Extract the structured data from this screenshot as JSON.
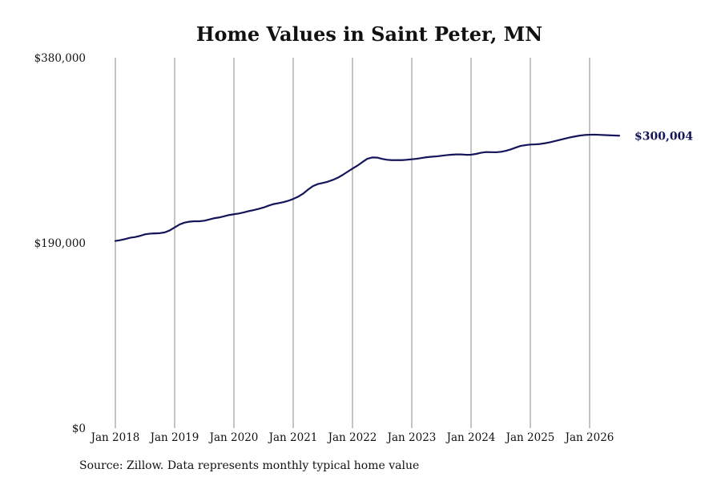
{
  "chart_data": {
    "type": "line",
    "title": "Home Values in Saint Peter, MN",
    "xlabel": "",
    "ylabel": "",
    "ylim": [
      0,
      380000
    ],
    "xlim": [
      "2018-01",
      "2026-08"
    ],
    "yticks": [
      {
        "value": 0,
        "label": "$0"
      },
      {
        "value": 190000,
        "label": "$190,000"
      },
      {
        "value": 380000,
        "label": "$380,000"
      }
    ],
    "xticks": [
      {
        "value": "2018-01",
        "label": "Jan 2018"
      },
      {
        "value": "2019-01",
        "label": "Jan 2019"
      },
      {
        "value": "2020-01",
        "label": "Jan 2020"
      },
      {
        "value": "2021-01",
        "label": "Jan 2021"
      },
      {
        "value": "2022-01",
        "label": "Jan 2022"
      },
      {
        "value": "2023-01",
        "label": "Jan 2023"
      },
      {
        "value": "2024-01",
        "label": "Jan 2024"
      },
      {
        "value": "2025-01",
        "label": "Jan 2025"
      },
      {
        "value": "2026-01",
        "label": "Jan 2026"
      }
    ],
    "grid": {
      "vertical": true,
      "horizontal": false
    },
    "line_color": "#14145a",
    "end_label": "$300,004",
    "series": [
      {
        "points": [
          {
            "x": "2018-01",
            "y": 192000
          },
          {
            "x": "2018-02",
            "y": 192800
          },
          {
            "x": "2018-03",
            "y": 194000
          },
          {
            "x": "2018-04",
            "y": 195300
          },
          {
            "x": "2018-05",
            "y": 196000
          },
          {
            "x": "2018-06",
            "y": 197200
          },
          {
            "x": "2018-07",
            "y": 198800
          },
          {
            "x": "2018-08",
            "y": 199500
          },
          {
            "x": "2018-09",
            "y": 199800
          },
          {
            "x": "2018-10",
            "y": 200000
          },
          {
            "x": "2018-11",
            "y": 200800
          },
          {
            "x": "2018-12",
            "y": 202800
          },
          {
            "x": "2019-01",
            "y": 205900
          },
          {
            "x": "2019-02",
            "y": 208900
          },
          {
            "x": "2019-03",
            "y": 210800
          },
          {
            "x": "2019-04",
            "y": 211800
          },
          {
            "x": "2019-05",
            "y": 212200
          },
          {
            "x": "2019-06",
            "y": 212200
          },
          {
            "x": "2019-07",
            "y": 212800
          },
          {
            "x": "2019-08",
            "y": 214000
          },
          {
            "x": "2019-09",
            "y": 215300
          },
          {
            "x": "2019-10",
            "y": 216100
          },
          {
            "x": "2019-11",
            "y": 217300
          },
          {
            "x": "2019-12",
            "y": 218600
          },
          {
            "x": "2020-01",
            "y": 219400
          },
          {
            "x": "2020-02",
            "y": 220200
          },
          {
            "x": "2020-03",
            "y": 221300
          },
          {
            "x": "2020-04",
            "y": 222600
          },
          {
            "x": "2020-05",
            "y": 223700
          },
          {
            "x": "2020-06",
            "y": 224900
          },
          {
            "x": "2020-07",
            "y": 226300
          },
          {
            "x": "2020-08",
            "y": 228200
          },
          {
            "x": "2020-09",
            "y": 229800
          },
          {
            "x": "2020-10",
            "y": 230800
          },
          {
            "x": "2020-11",
            "y": 231800
          },
          {
            "x": "2020-12",
            "y": 233200
          },
          {
            "x": "2021-01",
            "y": 235100
          },
          {
            "x": "2021-02",
            "y": 237400
          },
          {
            "x": "2021-03",
            "y": 240500
          },
          {
            "x": "2021-04",
            "y": 244700
          },
          {
            "x": "2021-05",
            "y": 248300
          },
          {
            "x": "2021-06",
            "y": 250400
          },
          {
            "x": "2021-07",
            "y": 251500
          },
          {
            "x": "2021-08",
            "y": 252800
          },
          {
            "x": "2021-09",
            "y": 254600
          },
          {
            "x": "2021-10",
            "y": 256800
          },
          {
            "x": "2021-11",
            "y": 259700
          },
          {
            "x": "2021-12",
            "y": 263000
          },
          {
            "x": "2022-01",
            "y": 266200
          },
          {
            "x": "2022-02",
            "y": 269300
          },
          {
            "x": "2022-03",
            "y": 272900
          },
          {
            "x": "2022-04",
            "y": 276300
          },
          {
            "x": "2022-05",
            "y": 277700
          },
          {
            "x": "2022-06",
            "y": 277500
          },
          {
            "x": "2022-07",
            "y": 276200
          },
          {
            "x": "2022-08",
            "y": 275300
          },
          {
            "x": "2022-09",
            "y": 274900
          },
          {
            "x": "2022-10",
            "y": 274900
          },
          {
            "x": "2022-11",
            "y": 274900
          },
          {
            "x": "2022-12",
            "y": 275300
          },
          {
            "x": "2023-01",
            "y": 275800
          },
          {
            "x": "2023-02",
            "y": 276300
          },
          {
            "x": "2023-03",
            "y": 277100
          },
          {
            "x": "2023-04",
            "y": 277900
          },
          {
            "x": "2023-05",
            "y": 278400
          },
          {
            "x": "2023-06",
            "y": 278800
          },
          {
            "x": "2023-07",
            "y": 279400
          },
          {
            "x": "2023-08",
            "y": 280000
          },
          {
            "x": "2023-09",
            "y": 280500
          },
          {
            "x": "2023-10",
            "y": 280800
          },
          {
            "x": "2023-11",
            "y": 280800
          },
          {
            "x": "2023-12",
            "y": 280400
          },
          {
            "x": "2024-01",
            "y": 280500
          },
          {
            "x": "2024-02",
            "y": 281300
          },
          {
            "x": "2024-03",
            "y": 282500
          },
          {
            "x": "2024-04",
            "y": 283200
          },
          {
            "x": "2024-05",
            "y": 283100
          },
          {
            "x": "2024-06",
            "y": 283000
          },
          {
            "x": "2024-07",
            "y": 283400
          },
          {
            "x": "2024-08",
            "y": 284400
          },
          {
            "x": "2024-09",
            "y": 285900
          },
          {
            "x": "2024-10",
            "y": 287700
          },
          {
            "x": "2024-11",
            "y": 289500
          },
          {
            "x": "2024-12",
            "y": 290300
          },
          {
            "x": "2025-01",
            "y": 290900
          },
          {
            "x": "2025-02",
            "y": 291100
          },
          {
            "x": "2025-03",
            "y": 291500
          },
          {
            "x": "2025-04",
            "y": 292300
          },
          {
            "x": "2025-05",
            "y": 293300
          },
          {
            "x": "2025-06",
            "y": 294500
          },
          {
            "x": "2025-07",
            "y": 295700
          },
          {
            "x": "2025-08",
            "y": 297000
          },
          {
            "x": "2025-09",
            "y": 298200
          },
          {
            "x": "2025-10",
            "y": 299200
          },
          {
            "x": "2025-11",
            "y": 300100
          },
          {
            "x": "2025-12",
            "y": 300700
          },
          {
            "x": "2026-01",
            "y": 301000
          },
          {
            "x": "2026-02",
            "y": 301100
          },
          {
            "x": "2026-03",
            "y": 300900
          },
          {
            "x": "2026-04",
            "y": 300600
          },
          {
            "x": "2026-05",
            "y": 300400
          },
          {
            "x": "2026-06",
            "y": 300200
          },
          {
            "x": "2026-07",
            "y": 300004
          }
        ]
      }
    ]
  },
  "source_note": "Source: Zillow. Data represents monthly typical home value"
}
